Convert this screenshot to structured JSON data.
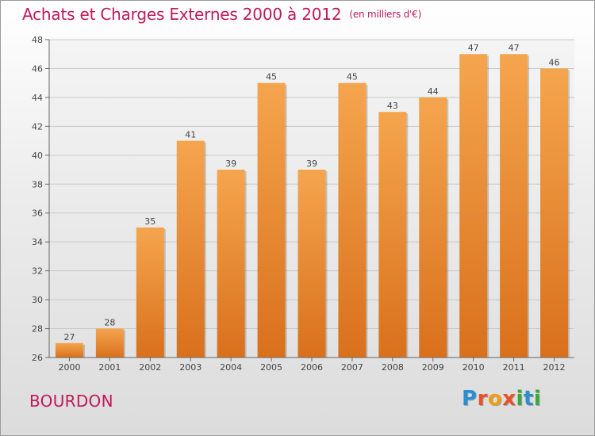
{
  "title": "Achats et Charges Externes 2000 à 2012",
  "unit_note": "(en milliers d'€)",
  "commune": "BOURDON",
  "logo": {
    "text": "Proxiti",
    "letters": [
      "P",
      "r",
      "o",
      "x",
      "i",
      "t",
      "i"
    ],
    "colors": [
      "#2a8fd0",
      "#e8512a",
      "#f39c12",
      "#e8512a",
      "#3aa935",
      "#2a8fd0",
      "#3aa935"
    ]
  },
  "colors": {
    "bar_top": "#f5a54e",
    "bar_bottom": "#d9701c",
    "title": "#c0185a",
    "grid": "#c8c8c8"
  },
  "chart_data": {
    "type": "bar",
    "categories": [
      "2000",
      "2001",
      "2002",
      "2003",
      "2004",
      "2005",
      "2006",
      "2007",
      "2008",
      "2009",
      "2010",
      "2011",
      "2012"
    ],
    "values": [
      27,
      28,
      35,
      41,
      39,
      45,
      39,
      45,
      43,
      44,
      47,
      47,
      46
    ],
    "ylim": [
      26,
      48
    ],
    "yticks": [
      26,
      28,
      30,
      32,
      34,
      36,
      38,
      40,
      42,
      44,
      46,
      48
    ],
    "grid": true,
    "title": "Achats et Charges Externes 2000 à 2012",
    "xlabel": "",
    "ylabel": ""
  }
}
